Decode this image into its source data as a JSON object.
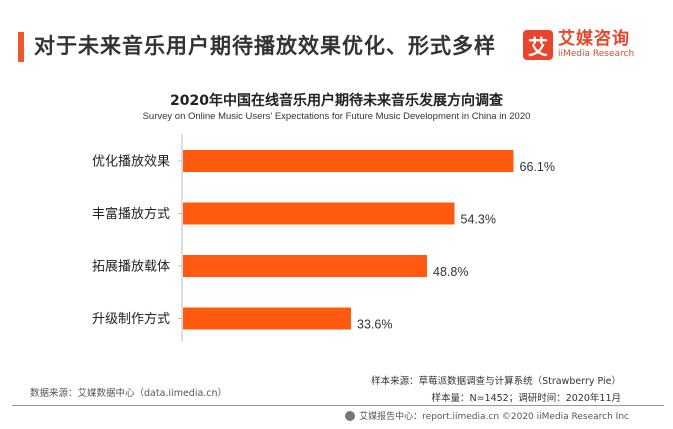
{
  "header": {
    "title": "对于未来音乐用户期待播放效果优化、形式多样",
    "brand_mark": "艾",
    "brand_cn": "艾媒咨询",
    "brand_en": "iiMedia Research"
  },
  "colors": {
    "accent": "#f0582a",
    "bar": "#ff5a0f",
    "brand": "#e8452c"
  },
  "chart_data": {
    "type": "bar",
    "orientation": "horizontal",
    "title": "2020年中国在线音乐用户期待未来音乐发展方向调查",
    "subtitle": "Survey on Online Music Users' Expectations for Future Music Development in China in 2020",
    "categories": [
      "优化播放效果",
      "丰富播放方式",
      "拓展播放载体",
      "升级制作方式"
    ],
    "values": [
      66.1,
      54.3,
      48.8,
      33.6
    ],
    "value_labels": [
      "66.1%",
      "54.3%",
      "48.8%",
      "33.6%"
    ],
    "unit": "%",
    "xlim": [
      0,
      70
    ],
    "grid": false,
    "legend": "none"
  },
  "footer": {
    "data_source": "数据来源：艾媒数据中心（data.iimedia.cn）",
    "sample_source": "样本来源：草莓派数据调查与计算系统（Strawberry Pie）",
    "sample_info": "样本量：N=1452；调研时间：2020年11月",
    "copyright": "艾媒报告中心：report.iimedia.cn ©2020  iiMedia Research  Inc"
  }
}
